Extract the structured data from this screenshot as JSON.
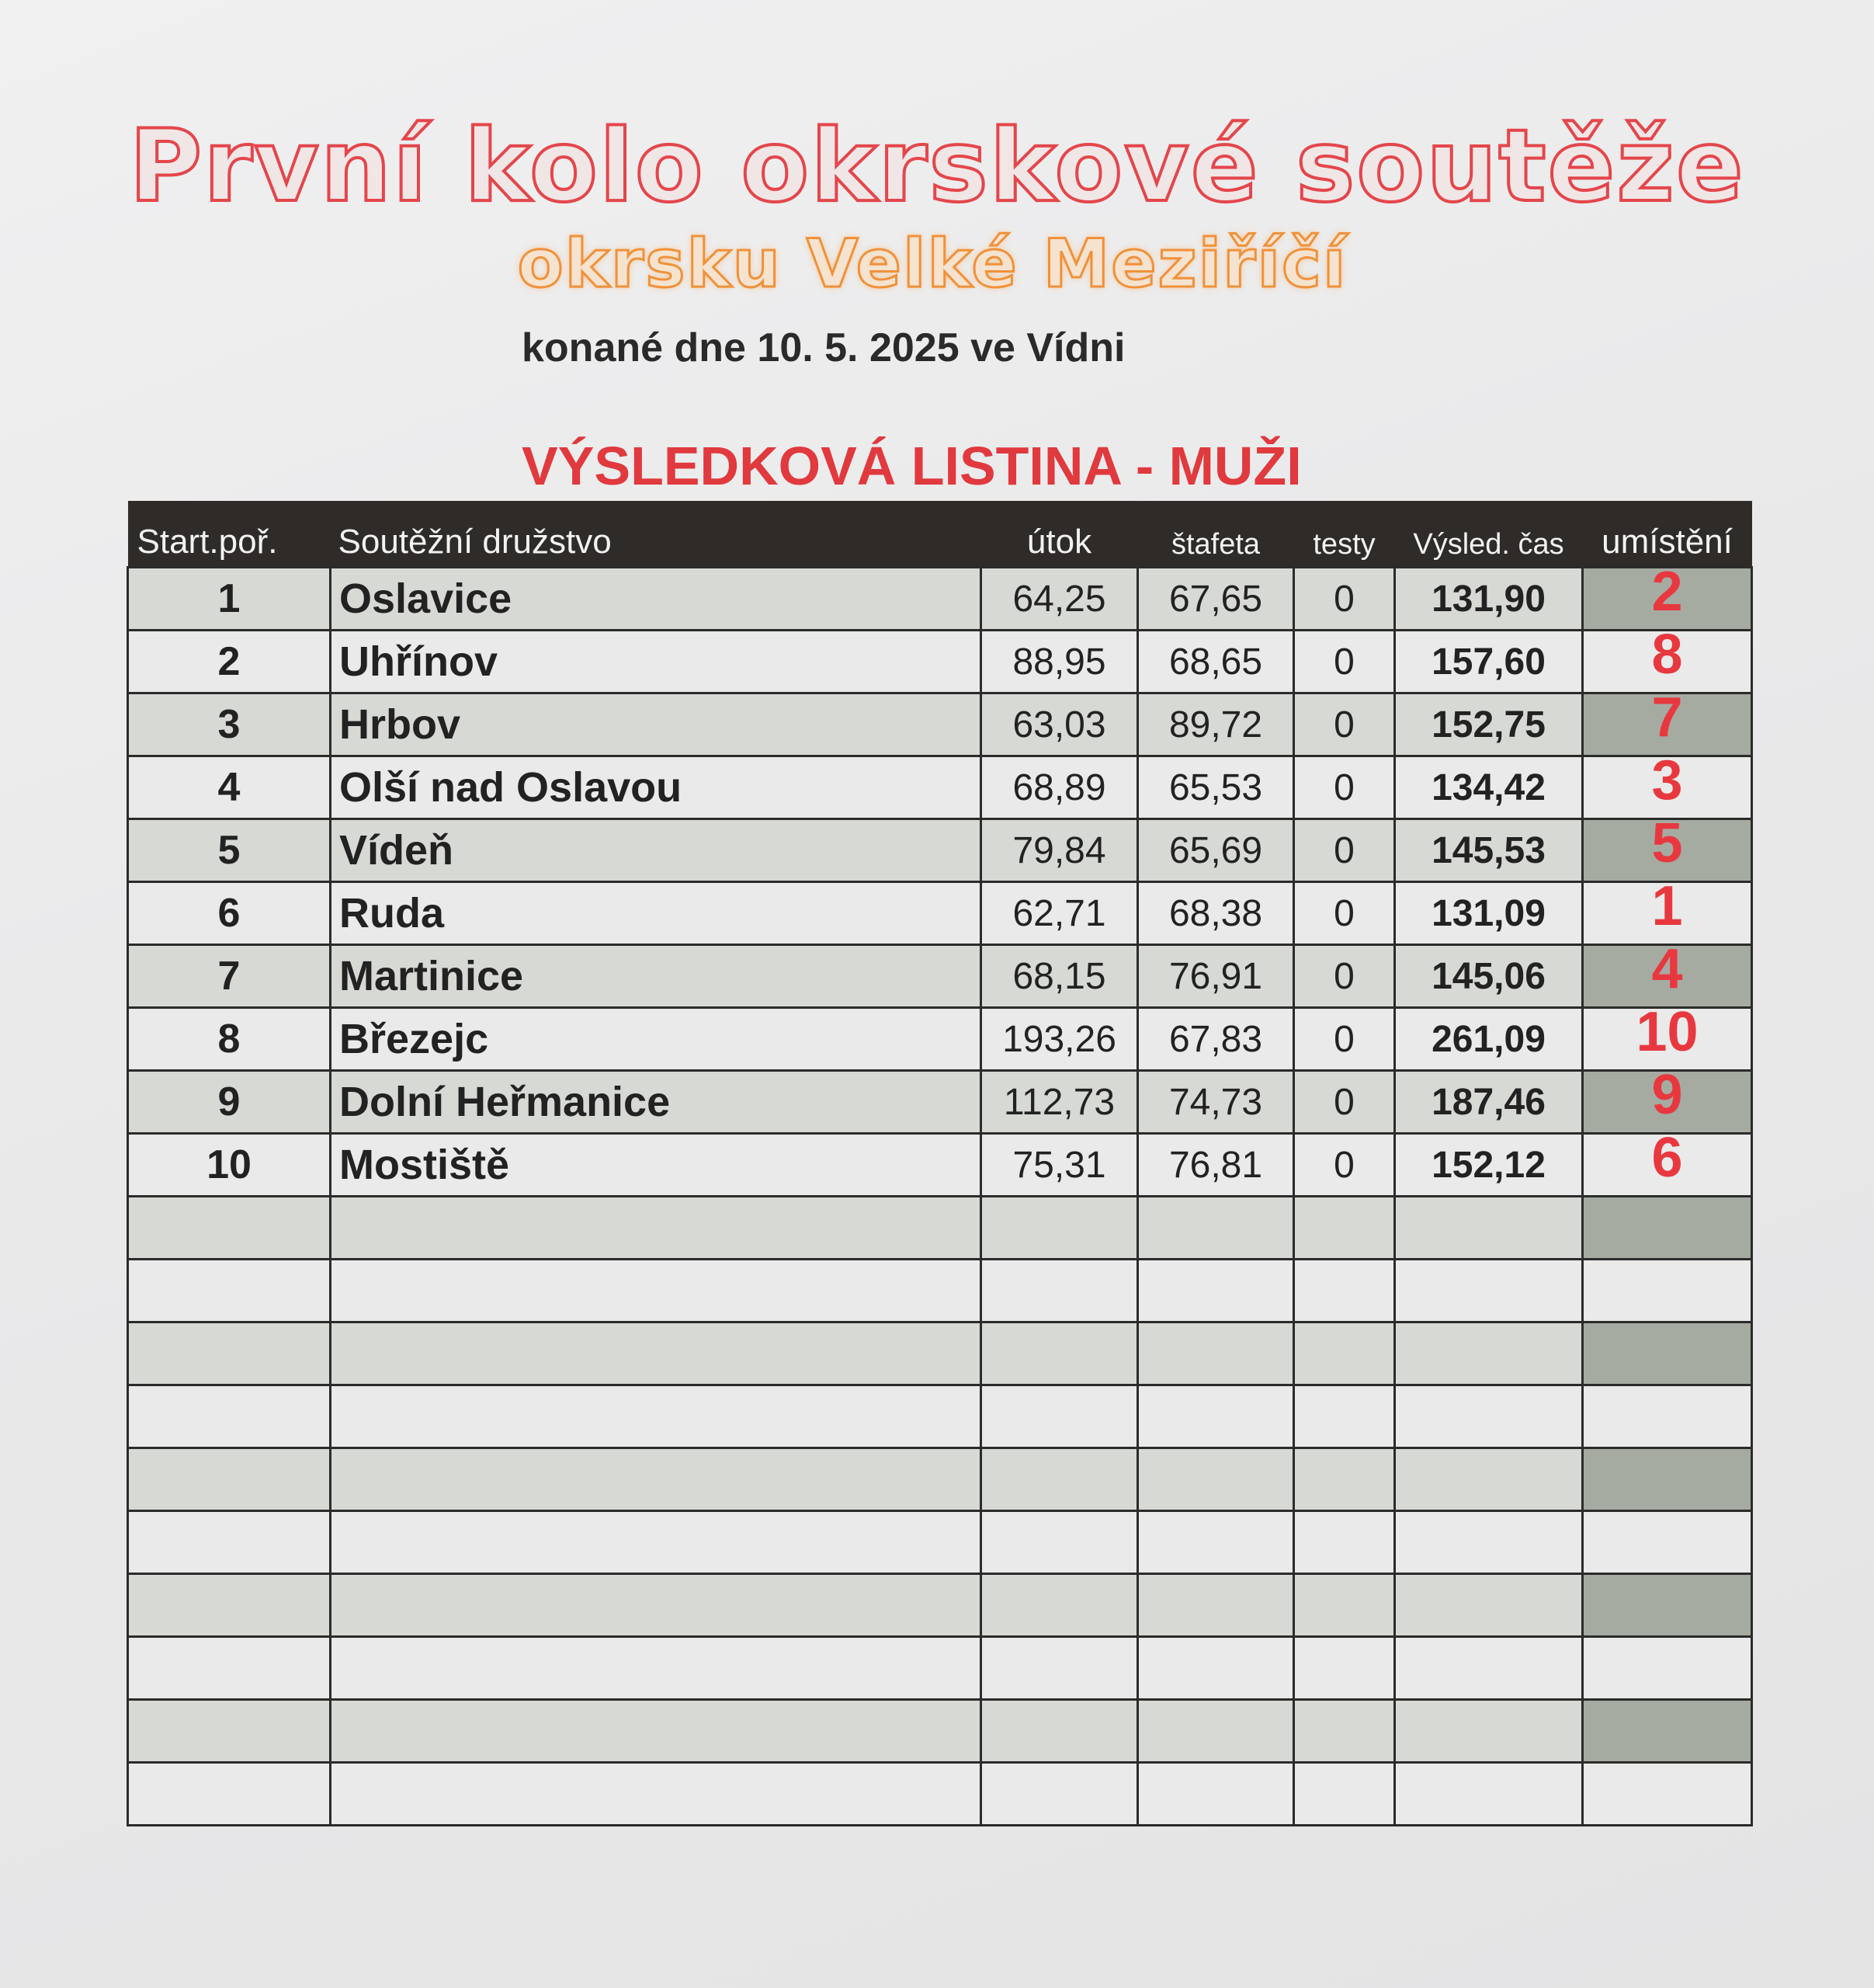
{
  "title": "První kolo okrskové soutěže",
  "subtitle": "okrsku Velké Meziříčí",
  "date_line": "konané dne 10. 5. 2025 ve Vídni",
  "heading": "VÝSLEDKOVÁ LISTINA - MUŽI",
  "colors": {
    "title_outline": "#e4464b",
    "subtitle_outline": "#f0913a",
    "heading": "#e0393e",
    "rank": "#e8383f",
    "header_bg": "#2f2b29"
  },
  "table": {
    "headers": [
      "Start.poř.",
      "Soutěžní družstvo",
      "útok",
      "štafeta",
      "testy",
      "Výsled. čas",
      "umístění"
    ],
    "rows": [
      {
        "start": "1",
        "team": "Oslavice",
        "utok": "64,25",
        "stafeta": "67,65",
        "testy": "0",
        "cas": "131,90",
        "umisteni": "2"
      },
      {
        "start": "2",
        "team": "Uhřínov",
        "utok": "88,95",
        "stafeta": "68,65",
        "testy": "0",
        "cas": "157,60",
        "umisteni": "8"
      },
      {
        "start": "3",
        "team": "Hrbov",
        "utok": "63,03",
        "stafeta": "89,72",
        "testy": "0",
        "cas": "152,75",
        "umisteni": "7"
      },
      {
        "start": "4",
        "team": "Olší nad Oslavou",
        "utok": "68,89",
        "stafeta": "65,53",
        "testy": "0",
        "cas": "134,42",
        "umisteni": "3"
      },
      {
        "start": "5",
        "team": "Vídeň",
        "utok": "79,84",
        "stafeta": "65,69",
        "testy": "0",
        "cas": "145,53",
        "umisteni": "5"
      },
      {
        "start": "6",
        "team": "Ruda",
        "utok": "62,71",
        "stafeta": "68,38",
        "testy": "0",
        "cas": "131,09",
        "umisteni": "1"
      },
      {
        "start": "7",
        "team": "Martinice",
        "utok": "68,15",
        "stafeta": "76,91",
        "testy": "0",
        "cas": "145,06",
        "umisteni": "4"
      },
      {
        "start": "8",
        "team": "Březejc",
        "utok": "193,26",
        "stafeta": "67,83",
        "testy": "0",
        "cas": "261,09",
        "umisteni": "10"
      },
      {
        "start": "9",
        "team": "Dolní Heřmanice",
        "utok": "112,73",
        "stafeta": "74,73",
        "testy": "0",
        "cas": "187,46",
        "umisteni": "9"
      },
      {
        "start": "10",
        "team": "Mostiště",
        "utok": "75,31",
        "stafeta": "76,81",
        "testy": "0",
        "cas": "152,12",
        "umisteni": "6"
      }
    ]
  }
}
